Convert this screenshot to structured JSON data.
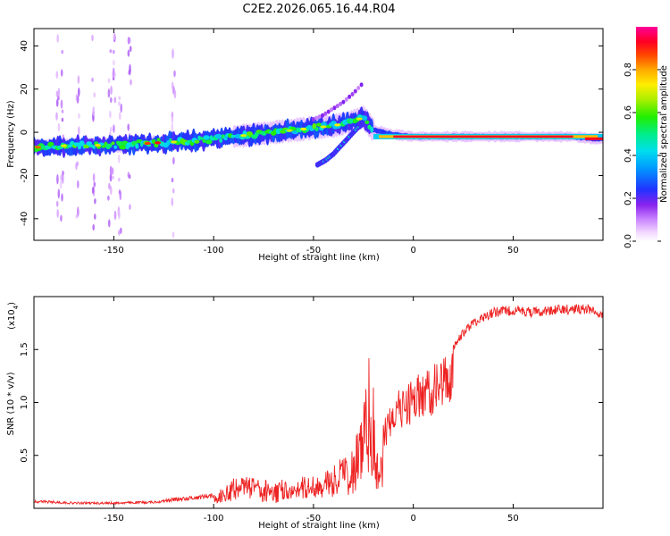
{
  "title": "C2E2.2026.065.16.44.R04",
  "colors": {
    "snr_line": "#ee2222",
    "frame": "#000000",
    "background": "#ffffff"
  },
  "chart_data": [
    {
      "type": "heatmap",
      "name": "spectrogram",
      "xlabel": "Height of straight line (km)",
      "ylabel": "Frequency (Hz)",
      "xlim": [
        -190,
        95
      ],
      "ylim": [
        -50,
        48
      ],
      "xticks": [
        -150,
        -100,
        -50,
        0,
        50
      ],
      "yticks": [
        -40,
        -20,
        0,
        20,
        40
      ],
      "grid": false,
      "colorbar": {
        "label": "Normalized spectral amplitude",
        "range": [
          0,
          1
        ],
        "ticks": [
          "0.0",
          "0.2",
          "0.4",
          "0.6",
          "0.8"
        ],
        "tick_values": [
          0,
          0.2,
          0.4,
          0.6,
          0.8
        ],
        "colormap": "rainbow (white-purple-blue-cyan-green-yellow-red-magenta)"
      },
      "ridge": {
        "description": "main Doppler ridge frequency vs height",
        "x": [
          -190,
          -170,
          -150,
          -130,
          -110,
          -100,
          -90,
          -80,
          -70,
          -60,
          -50,
          -40,
          -30,
          -25,
          -20,
          -15,
          -10,
          0,
          10,
          30,
          50,
          70,
          80,
          90,
          95
        ],
        "y": [
          -7,
          -6,
          -6,
          -5,
          -4,
          -3,
          -2,
          -1,
          0,
          1,
          2,
          3,
          5,
          7,
          1,
          0,
          -1,
          -2,
          -2,
          -2,
          -2,
          -2,
          -2,
          -3,
          -3
        ]
      },
      "branch": {
        "description": "secondary lower branch",
        "x": [
          -48,
          -44,
          -40,
          -36,
          -32,
          -28,
          -25
        ],
        "y": [
          -15,
          -13,
          -10,
          -6,
          -2,
          2,
          4
        ]
      },
      "upper_branch": {
        "description": "faint upper branch",
        "x": [
          -50,
          -45,
          -40,
          -35,
          -30,
          -26
        ],
        "y": [
          6,
          8,
          11,
          14,
          18,
          22
        ]
      }
    },
    {
      "type": "line",
      "name": "snr",
      "xlabel": "Height of straight line (km)",
      "ylabel": "SNR (10 * v/v)",
      "scale_label": "(x10",
      "scale_exponent": "4",
      "xlim": [
        -190,
        95
      ],
      "ylim": [
        0,
        2.0
      ],
      "xticks": [
        -150,
        -100,
        -50,
        0,
        50
      ],
      "yticks": [
        0.5,
        1.0,
        1.5
      ],
      "ytick_labels": [
        "0.5",
        "1.0",
        "1.5"
      ],
      "grid": false,
      "series": [
        {
          "name": "SNR",
          "envelope_x": [
            -190,
            -170,
            -150,
            -130,
            -120,
            -110,
            -100,
            -95,
            -90,
            -80,
            -70,
            -60,
            -50,
            -45,
            -40,
            -35,
            -30,
            -25,
            -22,
            -20,
            -17,
            -15,
            -12,
            -10,
            -5,
            0,
            5,
            10,
            15,
            20,
            25,
            30,
            40,
            50,
            60,
            70,
            80,
            90,
            95
          ],
          "envelope_y": [
            0.08,
            0.06,
            0.06,
            0.07,
            0.1,
            0.12,
            0.15,
            0.2,
            0.3,
            0.3,
            0.25,
            0.3,
            0.3,
            0.35,
            0.4,
            0.5,
            0.6,
            1.0,
            1.5,
            1.2,
            0.3,
            0.8,
            1.0,
            1.1,
            1.15,
            1.25,
            1.3,
            1.35,
            1.45,
            1.55,
            1.7,
            1.8,
            1.9,
            1.92,
            1.9,
            1.92,
            1.93,
            1.93,
            1.85
          ]
        }
      ]
    }
  ]
}
